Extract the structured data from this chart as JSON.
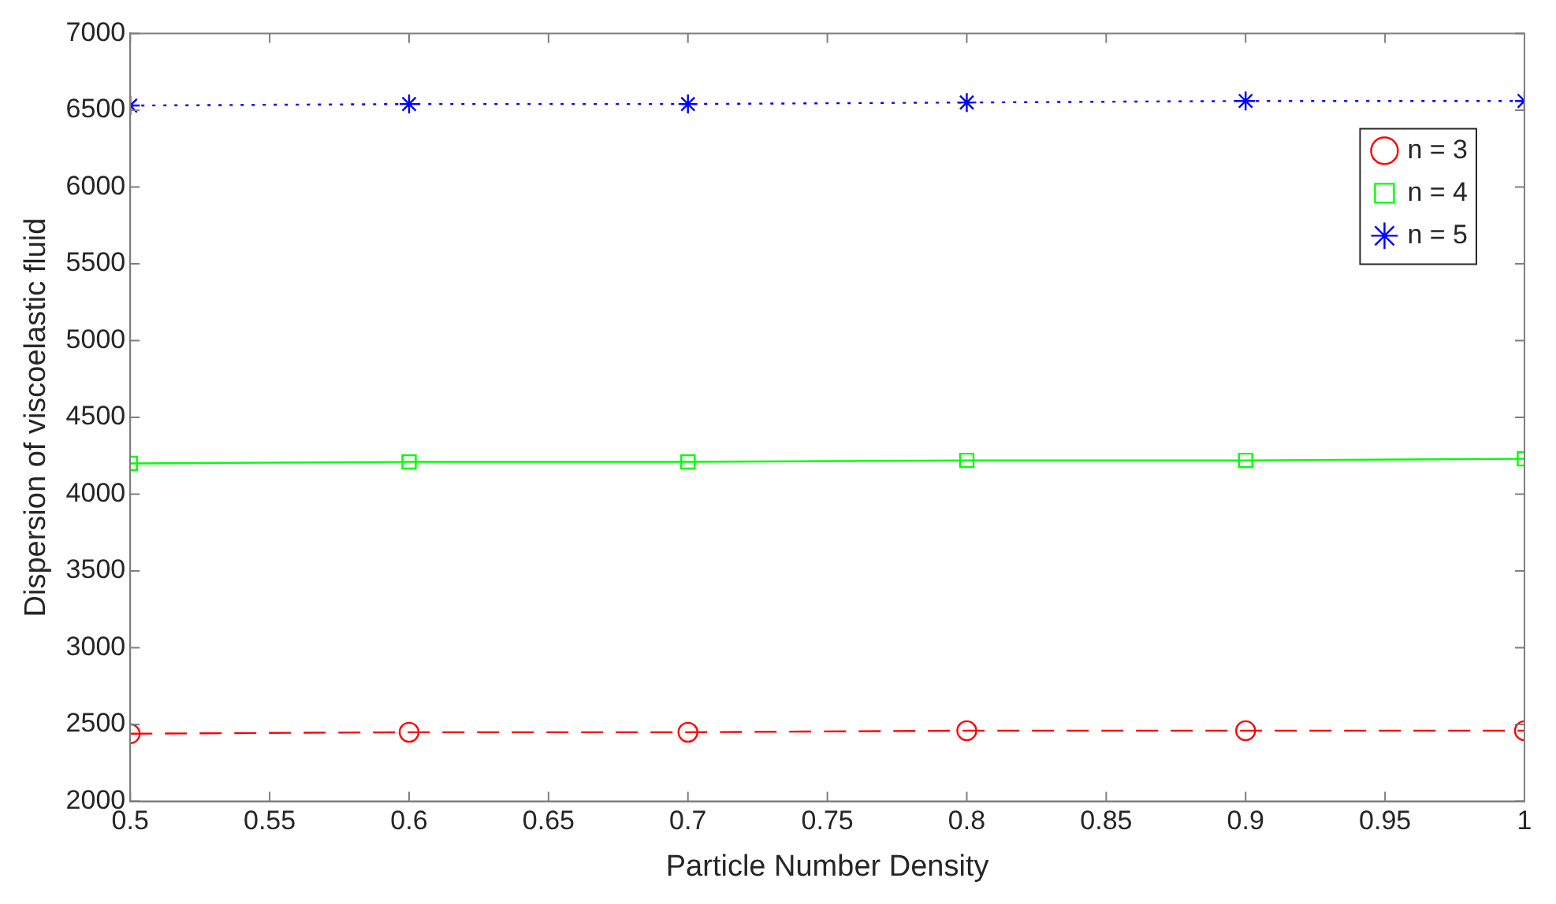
{
  "chart_data": {
    "type": "line",
    "xlabel": "Particle Number Density",
    "ylabel": "Dispersion of viscoelastic fluid",
    "x": [
      0.5,
      0.6,
      0.7,
      0.8,
      0.9,
      1
    ],
    "series": [
      {
        "name": "n = 3",
        "color": "#ff0000",
        "marker": "circle",
        "line_style": "dashed",
        "values": [
          2440,
          2450,
          2450,
          2460,
          2460,
          2460
        ]
      },
      {
        "name": "n = 4",
        "color": "#00ff00",
        "marker": "square",
        "line_style": "solid",
        "values": [
          4200,
          4210,
          4210,
          4220,
          4220,
          4230
        ]
      },
      {
        "name": "n = 5",
        "color": "#0000ff",
        "marker": "cross",
        "line_style": "dotted",
        "values": [
          6530,
          6540,
          6540,
          6550,
          6560,
          6560
        ]
      }
    ],
    "xlim": [
      0.5,
      1
    ],
    "xticks": [
      0.5,
      0.55,
      0.6,
      0.65,
      0.7,
      0.75,
      0.8,
      0.85,
      0.9,
      0.95,
      1
    ],
    "ylim": [
      2000,
      7000
    ],
    "yticks": [
      2000,
      2500,
      3000,
      3500,
      4000,
      4500,
      5000,
      5500,
      6000,
      6500,
      7000
    ],
    "grid": false,
    "legend": "top right"
  }
}
